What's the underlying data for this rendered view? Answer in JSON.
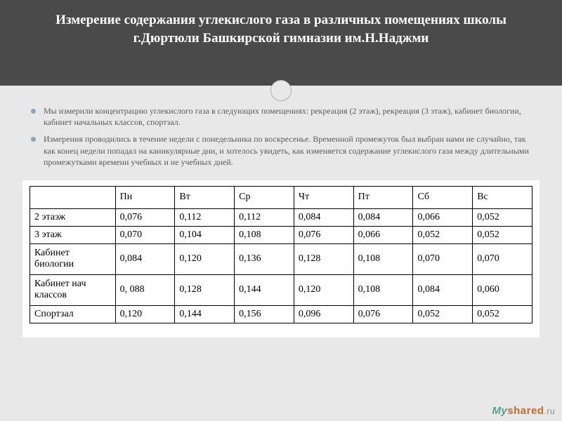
{
  "title": "Измерение содержания углекислого газа в различных помещениях школы г.Дюртюли Башкирской гимназии им.Н.Наджми",
  "bullets": [
    "Мы измерили концентрацию углекислого газа в следующих помещениях: рекреация (2 этаж), рекреация (3 этаж), кабинет биологии, кабинет начальных классов, спортзал.",
    "Измерения проводились в течение недели с понедельника по воскресенье. Временной промежуток был выбран нами не случайно, так как конец недели попадал на каникулярные дни, и хотелось увидеть, как изменяется содержание углекислого газа между длительными промежутками времени учебных и не учебных дней."
  ],
  "table": {
    "columns": [
      "",
      "Пн",
      "Вт",
      "Ср",
      "Чт",
      "Пт",
      "Сб",
      "Вс"
    ],
    "rows": [
      [
        "2 этаэж",
        "0,076",
        "0,112",
        "0,112",
        "0,084",
        "0,084",
        "0,066",
        "0,052"
      ],
      [
        "3 этаж",
        "0,070",
        "0,104",
        "0,108",
        "0,076",
        "0,066",
        "0,052",
        "0,052"
      ],
      [
        "Кабинет биологии",
        "0,084",
        "0,120",
        "0,136",
        "0,128",
        "0,108",
        "0,070",
        "0,070"
      ],
      [
        "Кабинет нач классов",
        "0, 088",
        "0,128",
        "0,144",
        "0,120",
        "0,108",
        "0,084",
        "0,060"
      ],
      [
        "Спортзал",
        "0,120",
        "0,144",
        "0,156",
        "0,096",
        "0,076",
        "0,052",
        "0,052"
      ]
    ]
  },
  "watermark": {
    "my": "My",
    "shared": "shared",
    "ru": ".ru"
  }
}
